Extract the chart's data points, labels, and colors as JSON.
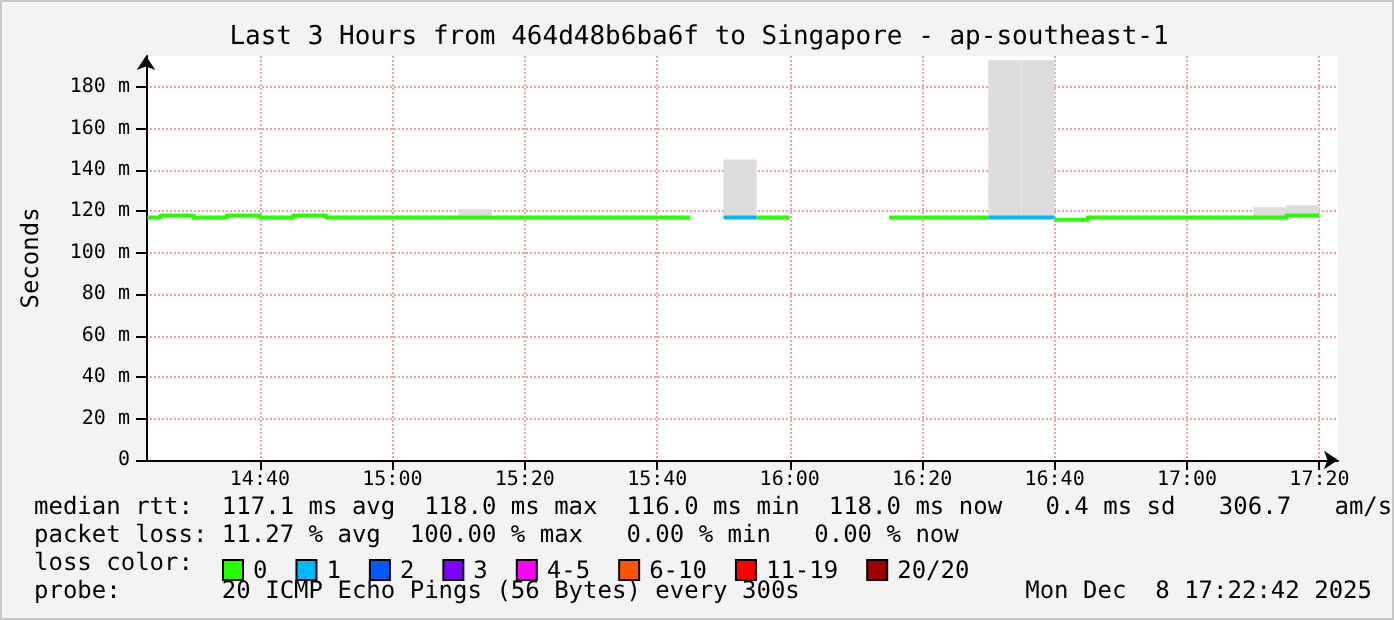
{
  "chart_data": {
    "type": "step",
    "title": "Last 3 Hours from 464d48b6ba6f to Singapore - ap-southeast-1",
    "ylabel": "Seconds",
    "legend_title": "loss color:",
    "xlim": [
      14.38,
      17.38
    ],
    "xticks": [
      {
        "value": 14.6667,
        "label": "14:40"
      },
      {
        "value": 15,
        "label": "15:00"
      },
      {
        "value": 15.3333,
        "label": "15:20"
      },
      {
        "value": 15.6667,
        "label": "15:40"
      },
      {
        "value": 16,
        "label": "16:00"
      },
      {
        "value": 16.3333,
        "label": "16:20"
      },
      {
        "value": 16.6667,
        "label": "16:40"
      },
      {
        "value": 17,
        "label": "17:00"
      },
      {
        "value": 17.3333,
        "label": "17:20"
      }
    ],
    "ylim": [
      0,
      195
    ],
    "yticks": [
      0,
      {
        "value": 20,
        "label": "20 m"
      },
      {
        "value": 40,
        "label": "40 m"
      },
      {
        "value": 60,
        "label": "60 m"
      },
      {
        "value": 80,
        "label": "80 m"
      },
      {
        "value": 100,
        "label": "100 m"
      },
      {
        "value": 120,
        "label": "120 m"
      },
      {
        "value": 140,
        "label": "140 m"
      },
      {
        "value": 160,
        "label": "160 m"
      },
      {
        "value": 180,
        "label": "180 m"
      }
    ],
    "grid": true,
    "legend": "bottom",
    "marker": "none",
    "series": [
      {
        "type": "bar",
        "color": "#dddddd",
        "x": [
          15.2083,
          15.875,
          16.5417,
          16.625,
          17.2083,
          17.2917
        ],
        "base": [
          117,
          117,
          117,
          117,
          117,
          118
        ],
        "values": [
          4,
          28,
          76,
          76,
          5,
          5
        ]
      },
      {
        "name": "0",
        "color": "#26ff00",
        "x": [
          14.3833,
          14.4167,
          14.5,
          14.5833,
          14.6667,
          14.75,
          14.8333,
          15.75
        ],
        "values": [
          117,
          118,
          117,
          118,
          117,
          118,
          117,
          117
        ]
      },
      {
        "color": "#26ff00",
        "x": [
          15.9167,
          16
        ],
        "values": [
          117,
          117
        ]
      },
      {
        "color": "#26ff00",
        "x": [
          16.25,
          16.5
        ],
        "values": [
          117,
          117
        ]
      },
      {
        "color": "#26ff00",
        "x": [
          16.6667,
          16.75,
          17.25,
          17.3333
        ],
        "values": [
          116,
          117,
          118,
          118
        ]
      },
      {
        "name": "1",
        "color": "#00b8ff",
        "x": [
          15.8333,
          15.9167
        ],
        "values": [
          117,
          117
        ]
      },
      {
        "color": "#00b8ff",
        "x": [
          16.5,
          16.6667
        ],
        "values": [
          117,
          117
        ]
      },
      {
        "name": "2",
        "color": "#0059ff"
      },
      {
        "name": "3",
        "color": "#7e00ff"
      },
      {
        "name": "4-5",
        "color": "#ff00ff"
      },
      {
        "name": "6-10",
        "color": "#ff5500"
      },
      {
        "name": "11-19",
        "color": "#ff0000"
      },
      {
        "name": "20/20",
        "color": "#a10000"
      }
    ],
    "annotations": [
      "median rtt:  117.1 ms avg  118.0 ms max  116.0 ms min  118.0 ms now   0.4 ms sd   306.7   am/s",
      "packet loss: 11.27 % avg  100.00 % max   0.00 % min   0.00 % now",
      "probe:       20 ICMP Echo Pings (56 Bytes) every 300s",
      "Mon Dec  8 17:22:42 2025"
    ]
  }
}
